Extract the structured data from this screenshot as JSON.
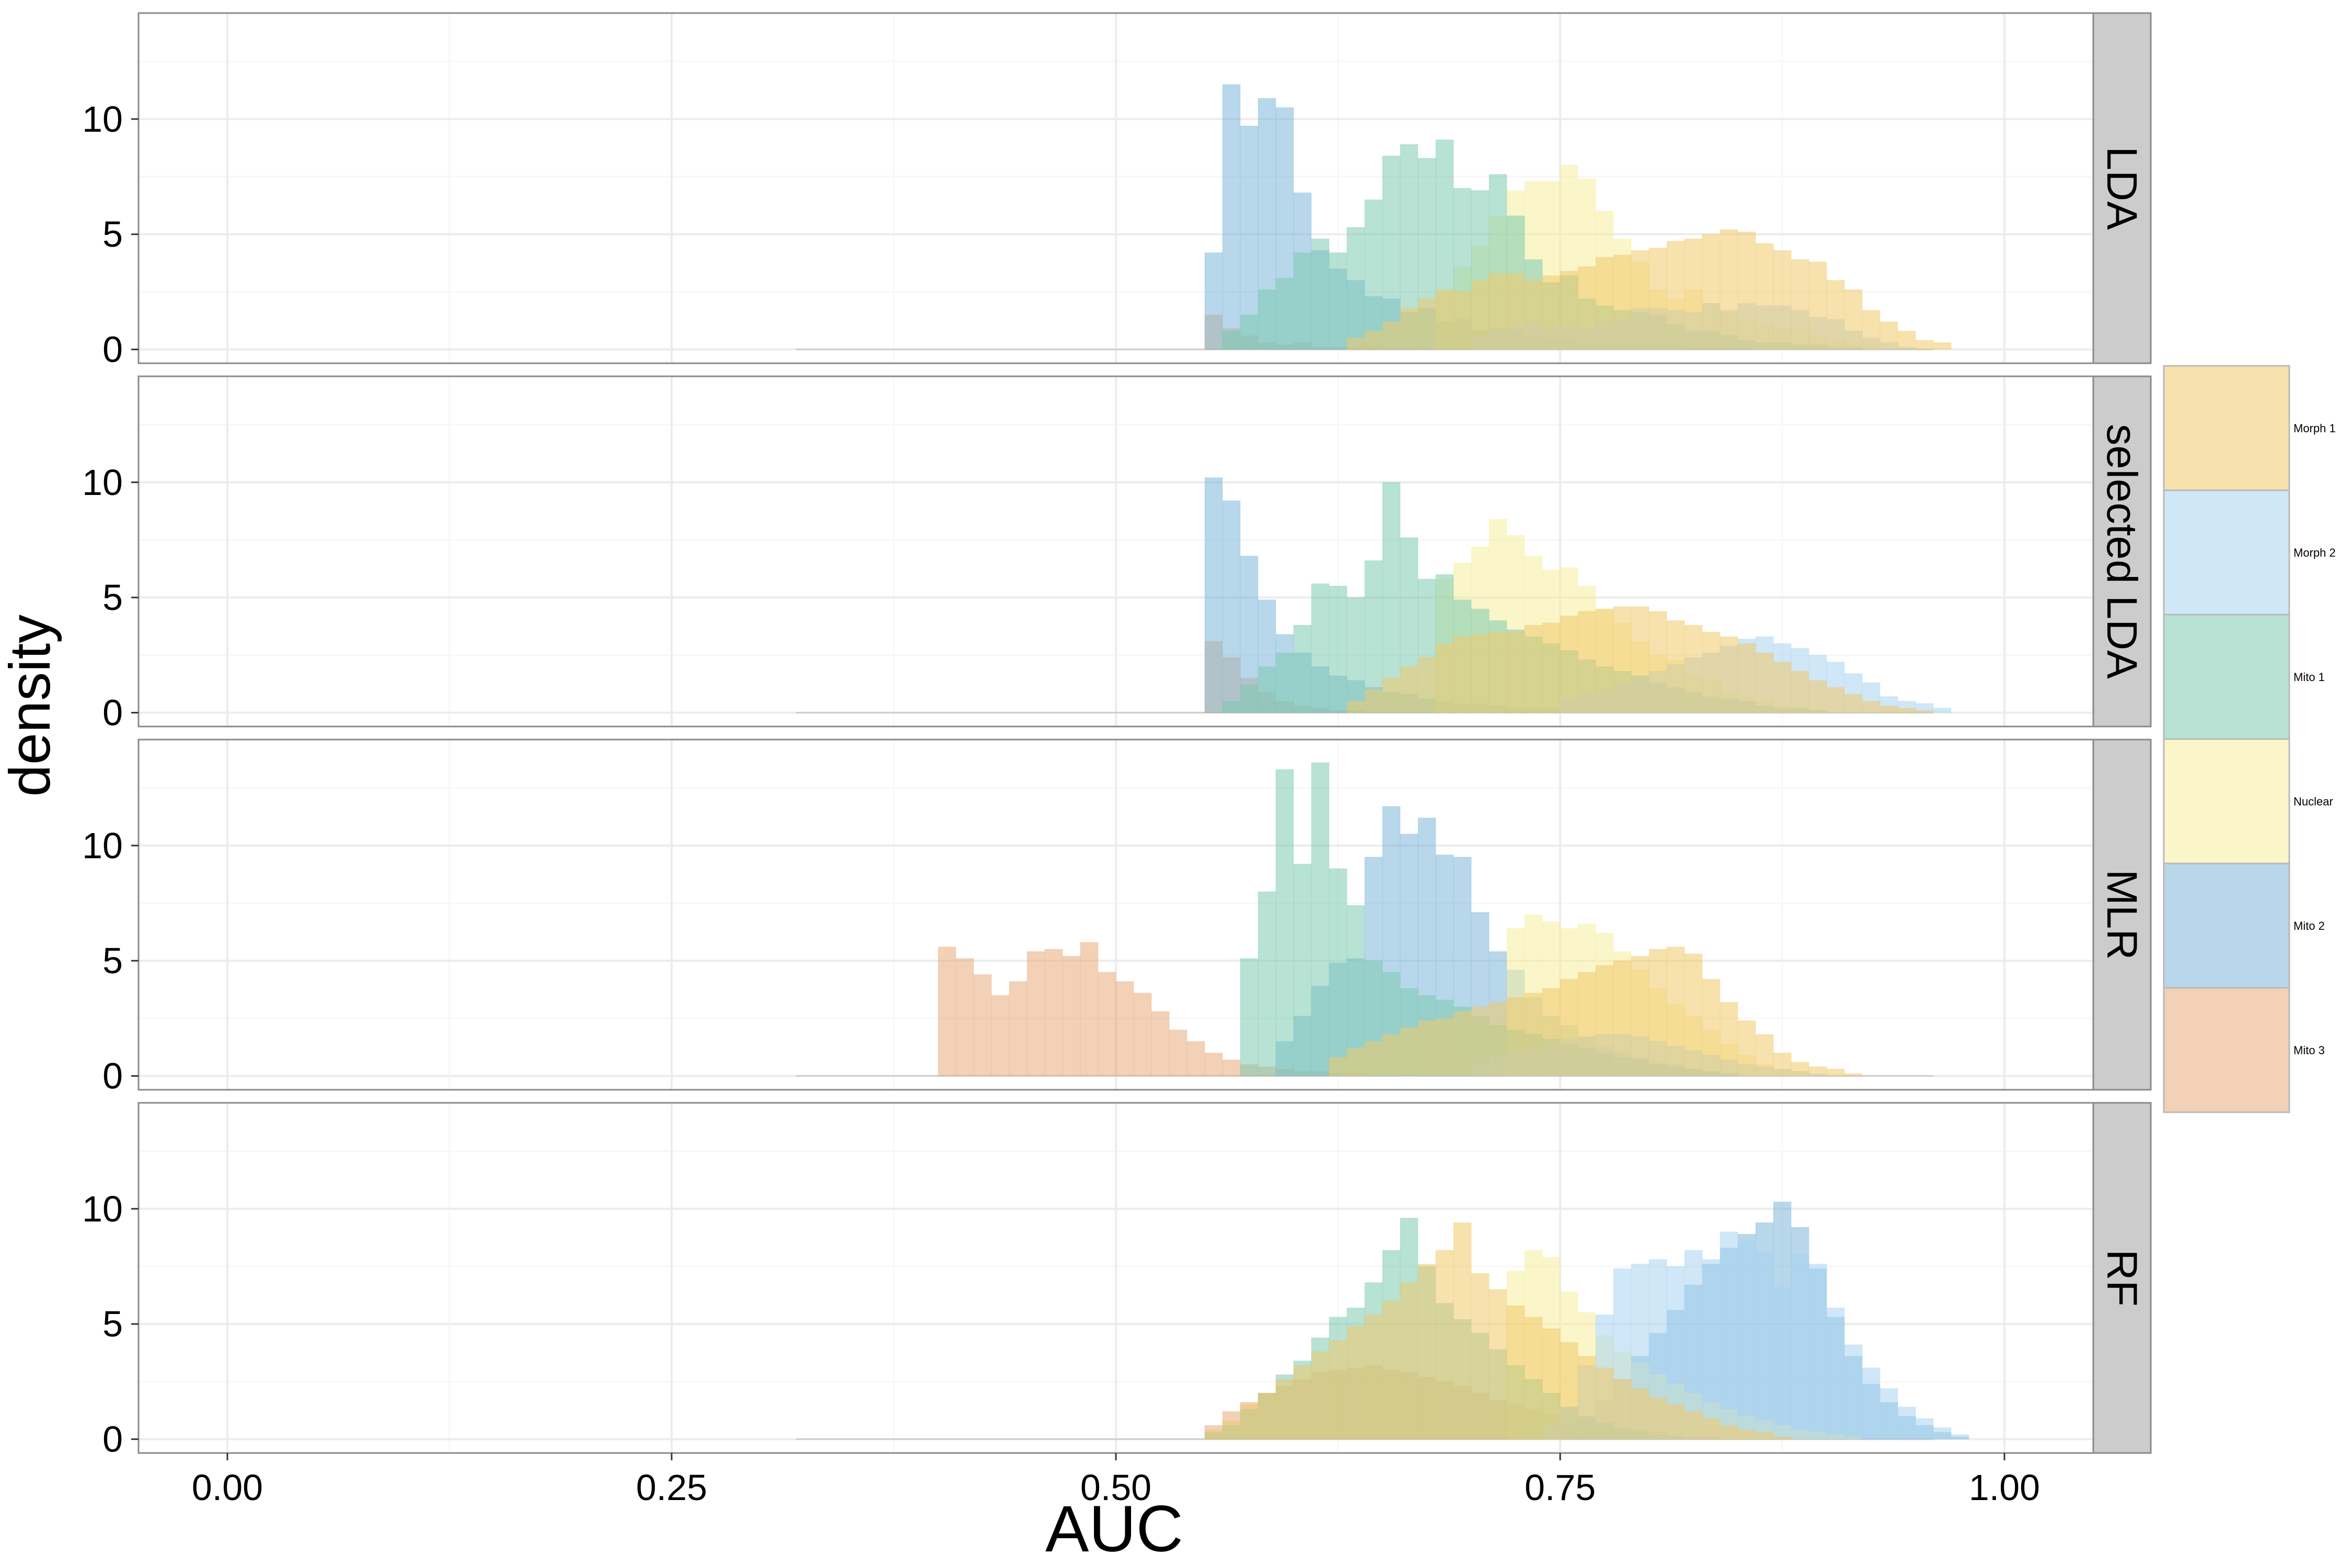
{
  "chart_data": {
    "type": "bar",
    "subtype": "faceted overlaid histogram",
    "title": "",
    "xlabel": "AUC",
    "ylabel": "density",
    "xlim": [
      -0.05,
      1.05
    ],
    "ylim": [
      -0.6,
      14.6
    ],
    "x_ticks": [
      0.0,
      0.25,
      0.5,
      0.75,
      1.0
    ],
    "x_tick_labels": [
      "0.00",
      "0.25",
      "0.50",
      "0.75",
      "1.00"
    ],
    "y_ticks": [
      0,
      5,
      10
    ],
    "y_tick_labels": [
      "0",
      "5",
      "10"
    ],
    "grid": true,
    "bin_width": 0.01,
    "legend_position": "right",
    "series": [
      {
        "name": "Morph 1",
        "color": "#f0c96a"
      },
      {
        "name": "Morph 2",
        "color": "#a8d4f0"
      },
      {
        "name": "Mito 1",
        "color": "#7ccbb0"
      },
      {
        "name": "Nuclear",
        "color": "#f5ef9e"
      },
      {
        "name": "Mito 2",
        "color": "#7db7d9"
      },
      {
        "name": "Mito 3",
        "color": "#e8ac7c"
      }
    ],
    "facets": [
      {
        "label": "LDA",
        "bins_start": 0.55,
        "series": {
          "Morph 1": [
            0,
            0,
            0,
            0,
            0,
            0,
            0,
            0,
            0.5,
            0.8,
            1.2,
            1.8,
            2.2,
            2.6,
            2.5,
            3.0,
            3.3,
            3.3,
            3.0,
            3.2,
            3.4,
            3.6,
            4.0,
            4.1,
            4.3,
            4.4,
            4.7,
            4.8,
            5.0,
            5.2,
            5.1,
            4.6,
            4.3,
            3.9,
            3.8,
            3.0,
            2.6,
            1.7,
            1.2,
            0.8,
            0.4,
            0.3
          ],
          "Morph 2": [
            0,
            0,
            0,
            0,
            0,
            0,
            0,
            0,
            0,
            0,
            0,
            0,
            0,
            0,
            0,
            0.6,
            0.8,
            1.0,
            1.2,
            1.0,
            1.0,
            0.9,
            1.2,
            1.3,
            1.8,
            1.8,
            1.7,
            1.6,
            2.0,
            1.7,
            2.0,
            1.9,
            1.9,
            1.7,
            1.4,
            1.3,
            0.8,
            0.5,
            0.3,
            0.1,
            0,
            0
          ],
          "Mito 1": [
            0,
            0.8,
            1.5,
            2.6,
            3.1,
            4.2,
            4.8,
            4.2,
            5.3,
            6.5,
            8.4,
            8.9,
            8.3,
            9.1,
            7.0,
            6.9,
            7.6,
            5.8,
            3.9,
            2.9,
            3.2,
            2.2,
            1.9,
            1.7,
            1.6,
            1.5,
            1.1,
            0.8,
            0.8,
            0.6,
            0.4,
            0.3,
            0.3,
            0.2,
            0.2,
            0.1,
            0.1,
            0,
            0,
            0,
            0,
            0
          ],
          "Nuclear": [
            0,
            0,
            0,
            0,
            0,
            0,
            0,
            0,
            0,
            0,
            0,
            0,
            0,
            2.5,
            3.6,
            4.5,
            5.8,
            6.9,
            7.3,
            7.3,
            8.0,
            7.4,
            6.0,
            4.8,
            3.8,
            2.6,
            2.2,
            2.6,
            2.0,
            1.6,
            1.3,
            1.1,
            0.9,
            0.9,
            0.6,
            0.4,
            0.3,
            0.2,
            0,
            0,
            0,
            0
          ],
          "Mito 2": [
            4.2,
            11.5,
            9.7,
            10.9,
            10.5,
            6.8,
            4.3,
            3.5,
            3.0,
            2.3,
            2.2,
            1.6,
            1.8,
            1.2,
            1.3,
            0.8,
            0.9,
            0.8,
            0.6,
            0.5,
            0.5,
            0.3,
            0.3,
            0.3,
            0.2,
            0.2,
            0.2,
            0.1,
            0.1,
            0.1,
            0.1,
            0,
            0,
            0,
            0,
            0,
            0,
            0,
            0,
            0,
            0,
            0
          ],
          "Mito 3": [
            1.5,
            0.9,
            0.6,
            0.3,
            0.2,
            0.3,
            0.1,
            0.1,
            0.1,
            0.1,
            0,
            0,
            0,
            0,
            0,
            0,
            0,
            0,
            0,
            0,
            0,
            0,
            0,
            0,
            0,
            0,
            0,
            0,
            0,
            0,
            0,
            0,
            0,
            0,
            0,
            0,
            0,
            0,
            0,
            0,
            0,
            0
          ]
        }
      },
      {
        "label": "selected LDA",
        "bins_start": 0.55,
        "series": {
          "Morph 1": [
            0,
            0,
            0,
            0,
            0,
            0,
            0,
            0,
            0.5,
            1.0,
            1.5,
            2.0,
            2.4,
            3.0,
            3.3,
            3.4,
            3.5,
            3.5,
            3.8,
            3.9,
            4.2,
            4.4,
            4.5,
            4.6,
            4.6,
            4.4,
            4.0,
            3.8,
            3.5,
            3.3,
            3.0,
            2.6,
            2.2,
            1.8,
            1.4,
            1.1,
            0.8,
            0.5,
            0.3,
            0.2,
            0.1,
            0
          ],
          "Morph 2": [
            0,
            0,
            0,
            0,
            0,
            0,
            0,
            0,
            0,
            0,
            0,
            0,
            0,
            0,
            0,
            0,
            0,
            0,
            0,
            0,
            0.6,
            0.8,
            1.0,
            1.3,
            1.6,
            1.8,
            2.1,
            2.4,
            2.6,
            2.9,
            3.2,
            3.3,
            3.0,
            2.8,
            2.5,
            2.2,
            1.7,
            1.3,
            0.7,
            0.5,
            0.4,
            0.2
          ],
          "Mito 1": [
            0,
            0.5,
            1.2,
            2.0,
            2.6,
            3.8,
            5.6,
            5.5,
            5.0,
            6.6,
            10.0,
            7.6,
            5.8,
            6.0,
            4.9,
            4.5,
            4.0,
            3.6,
            3.3,
            3.0,
            2.7,
            2.3,
            2.0,
            1.8,
            1.6,
            1.3,
            1.1,
            0.9,
            0.7,
            0.6,
            0.5,
            0.3,
            0.2,
            0.2,
            0.1,
            0,
            0,
            0,
            0,
            0,
            0,
            0
          ],
          "Nuclear": [
            0,
            0,
            0,
            0,
            0,
            0,
            0,
            0,
            0,
            0,
            0,
            0,
            0,
            5.8,
            6.5,
            7.2,
            8.4,
            7.7,
            6.8,
            6.2,
            6.3,
            5.5,
            4.5,
            3.9,
            3.1,
            2.5,
            2.3,
            1.6,
            1.4,
            0.9,
            0.7,
            0.5,
            0.3,
            0.2,
            0.1,
            0,
            0,
            0,
            0,
            0,
            0,
            0
          ],
          "Mito 2": [
            10.2,
            9.2,
            6.8,
            4.9,
            3.4,
            2.6,
            2.0,
            1.6,
            1.4,
            1.1,
            0.9,
            0.8,
            0.6,
            0.5,
            0.4,
            0.4,
            0.3,
            0.2,
            0.2,
            0.2,
            0.1,
            0.1,
            0.1,
            0.1,
            0,
            0,
            0,
            0,
            0,
            0,
            0,
            0,
            0,
            0,
            0,
            0,
            0,
            0,
            0,
            0,
            0,
            0
          ],
          "Mito 3": [
            3.1,
            2.4,
            1.5,
            0.9,
            0.5,
            0.3,
            0.2,
            0.1,
            0.1,
            0,
            0,
            0,
            0,
            0,
            0,
            0,
            0,
            0,
            0,
            0,
            0,
            0,
            0,
            0,
            0,
            0,
            0,
            0,
            0,
            0,
            0,
            0,
            0,
            0,
            0,
            0,
            0,
            0,
            0,
            0,
            0,
            0
          ]
        }
      },
      {
        "label": "MLR",
        "bins_start": 0.4,
        "series": {
          "Morph 1": [
            0,
            0,
            0,
            0,
            0,
            0,
            0,
            0,
            0,
            0,
            0,
            0,
            0,
            0,
            0,
            0,
            0,
            0,
            0,
            0,
            0,
            0,
            0.8,
            1.2,
            1.5,
            1.8,
            2.1,
            2.4,
            2.5,
            2.8,
            3.0,
            3.2,
            3.4,
            3.6,
            3.8,
            4.2,
            4.5,
            4.8,
            5.0,
            5.2,
            5.5,
            5.6,
            5.3,
            4.2,
            3.2,
            2.4,
            1.8,
            1.0,
            0.6,
            0.4,
            0.3,
            0.1
          ],
          "Morph 2": [
            0,
            0,
            0,
            0,
            0,
            0,
            0,
            0,
            0,
            0,
            0,
            0,
            0,
            0,
            0,
            0,
            0,
            0,
            0,
            0,
            0,
            0,
            0,
            0,
            0,
            0,
            0,
            0,
            0,
            0,
            0.5,
            0.8,
            1.0,
            1.2,
            1.4,
            1.6,
            1.7,
            1.8,
            1.8,
            1.7,
            1.5,
            1.3,
            1.1,
            0.9,
            0.7,
            0.5,
            0.4,
            0.3,
            0.2,
            0.1,
            0,
            0
          ],
          "Mito 1": [
            0,
            0,
            0,
            0,
            0,
            0,
            0,
            0,
            0,
            0,
            0,
            0,
            0,
            0,
            0,
            0,
            0,
            5.1,
            8.0,
            13.3,
            9.2,
            13.6,
            9.0,
            7.4,
            5.0,
            4.5,
            3.8,
            3.5,
            3.3,
            3.0,
            2.6,
            2.2,
            2.0,
            1.8,
            1.6,
            1.4,
            1.2,
            1.0,
            0.8,
            0.7,
            0.5,
            0.4,
            0.3,
            0.2,
            0.1,
            0,
            0,
            0,
            0,
            0,
            0,
            0
          ],
          "Nuclear": [
            0,
            0,
            0,
            0,
            0,
            0,
            0,
            0,
            0,
            0,
            0,
            0,
            0,
            0,
            0,
            0,
            0,
            0,
            0,
            0,
            0,
            0,
            0,
            0,
            0,
            0,
            0,
            0,
            0,
            0,
            0,
            0,
            6.4,
            7.0,
            6.7,
            6.4,
            6.6,
            6.2,
            5.4,
            4.6,
            3.8,
            3.1,
            2.6,
            2.0,
            1.4,
            0.9,
            0.5,
            0.3,
            0.2,
            0,
            0,
            0
          ],
          "Mito 2": [
            0,
            0,
            0,
            0,
            0,
            0,
            0,
            0,
            0,
            0,
            0,
            0,
            0,
            0,
            0,
            0,
            0,
            0,
            0,
            1.5,
            2.6,
            3.9,
            4.9,
            5.1,
            9.5,
            11.7,
            10.5,
            11.2,
            9.6,
            9.5,
            7.1,
            5.4,
            4.6,
            3.4,
            2.6,
            2.2,
            1.7,
            1.3,
            1.0,
            0.8,
            0.6,
            0.5,
            0.3,
            0.2,
            0.1,
            0,
            0,
            0,
            0,
            0,
            0,
            0
          ],
          "Mito 3": [
            5.6,
            5.1,
            4.4,
            3.5,
            4.1,
            5.4,
            5.5,
            5.2,
            5.8,
            4.5,
            4.1,
            3.6,
            2.8,
            2.0,
            1.5,
            1.0,
            0.7,
            0.5,
            0.4,
            0.3,
            0.2,
            0.2,
            0.1,
            0.1,
            0,
            0,
            0,
            0,
            0,
            0,
            0,
            0,
            0,
            0,
            0,
            0,
            0,
            0,
            0,
            0,
            0,
            0,
            0,
            0,
            0,
            0,
            0,
            0,
            0,
            0,
            0,
            0
          ]
        }
      },
      {
        "label": "RF",
        "bins_start": 0.55,
        "series": {
          "Morph 1": [
            0.4,
            0.8,
            1.5,
            2.0,
            2.6,
            3.2,
            3.8,
            4.3,
            4.9,
            5.4,
            6.0,
            6.8,
            7.6,
            8.2,
            9.4,
            7.2,
            6.5,
            5.8,
            5.3,
            4.8,
            4.2,
            3.6,
            3.1,
            2.6,
            2.2,
            1.8,
            1.5,
            1.2,
            0.9,
            0.6,
            0.4,
            0.3,
            0.1,
            0,
            0,
            0,
            0,
            0,
            0,
            0,
            0,
            0,
            0
          ],
          "Morph 2": [
            0,
            0,
            0,
            0,
            0,
            0,
            0,
            0,
            0,
            0,
            0,
            0,
            0,
            0,
            0,
            0,
            0,
            0,
            0,
            0.6,
            1.4,
            3.2,
            5.4,
            7.4,
            7.6,
            7.8,
            7.5,
            8.2,
            7.8,
            9.0,
            8.6,
            8.1,
            6.6,
            8.0,
            7.6,
            5.7,
            4.1,
            3.1,
            2.2,
            1.4,
            0.9,
            0.5,
            0.2
          ],
          "Mito 1": [
            0.3,
            0.6,
            1.3,
            2.0,
            2.8,
            3.4,
            4.4,
            5.3,
            5.7,
            6.8,
            8.2,
            9.6,
            7.5,
            5.9,
            5.2,
            4.6,
            3.9,
            3.2,
            2.6,
            2.0,
            1.4,
            1.0,
            0.7,
            0.5,
            0.3,
            0.2,
            0.1,
            0,
            0,
            0,
            0,
            0,
            0,
            0,
            0,
            0,
            0,
            0,
            0,
            0,
            0,
            0,
            0
          ],
          "Nuclear": [
            0,
            0,
            0,
            0,
            0,
            0,
            0,
            0,
            0,
            0,
            0,
            0,
            0,
            0,
            0,
            0,
            0,
            7.3,
            8.2,
            7.9,
            6.4,
            5.5,
            4.5,
            3.8,
            3.3,
            2.8,
            2.4,
            2.0,
            1.6,
            1.3,
            1.0,
            0.8,
            0.6,
            0.4,
            0.3,
            0.2,
            0.1,
            0,
            0,
            0,
            0,
            0,
            0
          ],
          "Mito 2": [
            0,
            0,
            0,
            0,
            0,
            0,
            0,
            0,
            0,
            0,
            0,
            0,
            0,
            0,
            0,
            0,
            0,
            0,
            0,
            0,
            0.4,
            0.9,
            1.7,
            2.6,
            3.6,
            4.6,
            5.6,
            6.7,
            7.6,
            8.3,
            8.9,
            9.4,
            10.3,
            9.2,
            7.4,
            5.3,
            3.6,
            2.4,
            1.6,
            1.0,
            0.6,
            0.3,
            0.1
          ],
          "Mito 3": [
            0.6,
            1.2,
            1.6,
            2.0,
            2.3,
            2.6,
            2.9,
            3.0,
            3.1,
            3.2,
            3.0,
            2.9,
            2.7,
            2.5,
            2.3,
            2.0,
            1.7,
            1.5,
            1.3,
            1.1,
            0.9,
            0.7,
            0.6,
            0.5,
            0.4,
            0.3,
            0.2,
            0.1,
            0.1,
            0,
            0,
            0,
            0,
            0,
            0,
            0,
            0,
            0,
            0,
            0,
            0,
            0,
            0
          ]
        }
      }
    ]
  }
}
